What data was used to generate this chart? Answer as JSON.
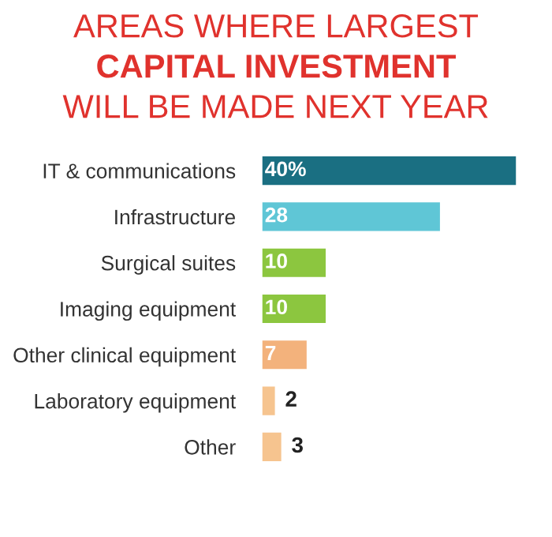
{
  "chart_data": {
    "type": "bar",
    "orientation": "horizontal",
    "title": "AREAS WHERE LARGEST\nCAPITAL INVESTMENT\nWILL BE MADE NEXT YEAR",
    "categories": [
      "IT & communications",
      "Infrastructure",
      "Surgical suites",
      "Imaging equipment",
      "Other clinical equipment",
      "Laboratory equipment",
      "Other"
    ],
    "values": [
      40,
      28,
      10,
      10,
      7,
      2,
      3
    ],
    "colors": [
      "#1a6f82",
      "#5fc6d6",
      "#8cc63f",
      "#8cc63f",
      "#f3b27c",
      "#f6c48f",
      "#f6c48f"
    ],
    "value_labels": [
      "40%",
      "28",
      "10",
      "10",
      "7",
      "2",
      "3"
    ],
    "xlim": [
      0,
      40
    ],
    "tick_labels": "y",
    "grid": false,
    "legend": false
  }
}
